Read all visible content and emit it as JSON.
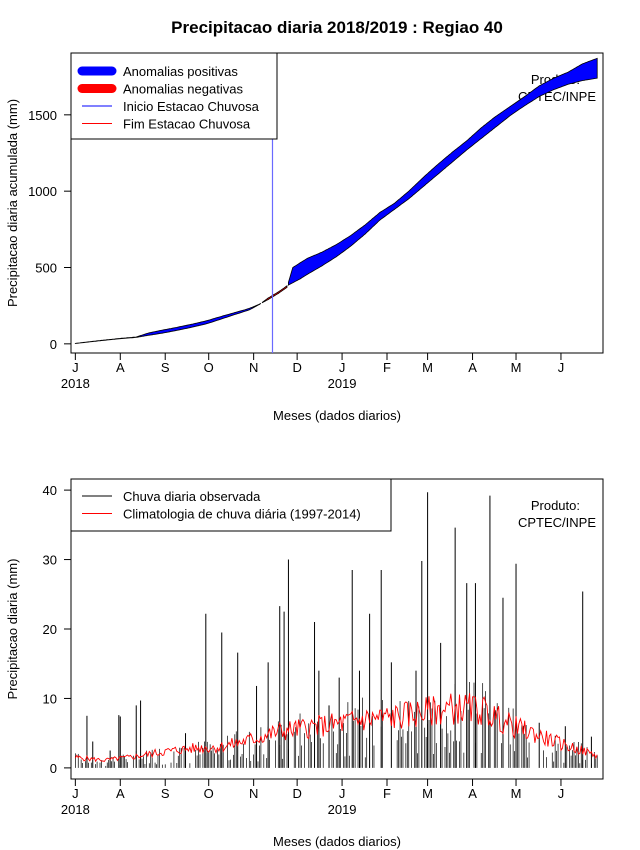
{
  "title": "Precipitacao diaria 2018/2019 : Regiao 40",
  "chart_data": [
    {
      "type": "area",
      "ylabel": "Precipitacao diaria acumulada (mm)",
      "xlabel": "Meses (dados diarios)",
      "x_range_days": [
        -3,
        364
      ],
      "ylim": [
        -60,
        1905
      ],
      "y_ticks": [
        0,
        500,
        1000,
        1500
      ],
      "month_ticks": [
        {
          "label": "J",
          "day": 0
        },
        {
          "label": "A",
          "day": 31
        },
        {
          "label": "S",
          "day": 62
        },
        {
          "label": "O",
          "day": 92
        },
        {
          "label": "N",
          "day": 123
        },
        {
          "label": "D",
          "day": 153
        },
        {
          "label": "J",
          "day": 184
        },
        {
          "label": "F",
          "day": 215
        },
        {
          "label": "M",
          "day": 243
        },
        {
          "label": "A",
          "day": 274
        },
        {
          "label": "M",
          "day": 304
        },
        {
          "label": "J",
          "day": 335
        }
      ],
      "year_labels": [
        {
          "label": "2018",
          "day": 0
        },
        {
          "label": "2019",
          "day": 184
        }
      ],
      "legend": {
        "position": "top-left",
        "entries": [
          {
            "label": "Anomalias positivas",
            "color": "#0000ff",
            "style": "thick"
          },
          {
            "label": "Anomalias negativas",
            "color": "#ff0000",
            "style": "thick"
          },
          {
            "label": "Inicio Estacao Chuvosa",
            "color": "#0000ff",
            "style": "thin"
          },
          {
            "label": "Fim Estacao Chuvosa",
            "color": "#ff0000",
            "style": "thin"
          }
        ]
      },
      "annotation": [
        "Produto:",
        "CPTEC/INPE"
      ],
      "rainy_season_start_day": 136,
      "series": [
        {
          "name": "Observado acumulado",
          "days": [
            0,
            15,
            30,
            42,
            50,
            60,
            70,
            80,
            90,
            100,
            110,
            120,
            127,
            133,
            140,
            146,
            150,
            155,
            160,
            170,
            180,
            190,
            200,
            210,
            220,
            230,
            240,
            250,
            260,
            270,
            280,
            290,
            300,
            310,
            320,
            330,
            340,
            350,
            360
          ],
          "values": [
            3,
            20,
            35,
            45,
            70,
            90,
            108,
            128,
            150,
            178,
            205,
            232,
            260,
            290,
            330,
            370,
            500,
            530,
            560,
            600,
            650,
            710,
            780,
            860,
            920,
            1000,
            1090,
            1175,
            1255,
            1330,
            1415,
            1490,
            1555,
            1620,
            1690,
            1740,
            1780,
            1835,
            1870
          ]
        },
        {
          "name": "Climatologia acumulada",
          "days": [
            0,
            15,
            30,
            42,
            50,
            60,
            70,
            80,
            90,
            100,
            110,
            120,
            127,
            133,
            140,
            146,
            150,
            155,
            160,
            170,
            180,
            190,
            200,
            210,
            220,
            230,
            240,
            250,
            260,
            270,
            280,
            290,
            300,
            310,
            320,
            330,
            340,
            350,
            360
          ],
          "values": [
            2,
            18,
            33,
            42,
            55,
            70,
            88,
            108,
            130,
            160,
            192,
            222,
            258,
            300,
            340,
            380,
            400,
            425,
            455,
            510,
            570,
            640,
            720,
            810,
            880,
            950,
            1030,
            1110,
            1190,
            1270,
            1345,
            1420,
            1495,
            1560,
            1620,
            1665,
            1700,
            1725,
            1740
          ]
        }
      ]
    },
    {
      "type": "bar",
      "ylabel": "Precipitacao diaria (mm)",
      "xlabel": "Meses (dados diarios)",
      "x_range_days": [
        -3,
        364
      ],
      "ylim": [
        -1.6,
        41.6
      ],
      "y_ticks": [
        0,
        10,
        20,
        30,
        40
      ],
      "legend": {
        "position": "top-left",
        "entries": [
          {
            "label": "Chuva diaria observada",
            "color": "#000000"
          },
          {
            "label": "Climatologia de chuva diária (1997-2014)",
            "color": "#ff0000"
          }
        ]
      },
      "annotation": [
        "Produto:",
        "CPTEC/INPE"
      ],
      "series": [
        {
          "name": "Chuva diaria observada",
          "peaks": [
            {
              "day": 8,
              "value": 7.5
            },
            {
              "day": 12,
              "value": 3.8
            },
            {
              "day": 24,
              "value": 2.5
            },
            {
              "day": 30,
              "value": 7.6
            },
            {
              "day": 31,
              "value": 7.4
            },
            {
              "day": 42,
              "value": 9
            },
            {
              "day": 45,
              "value": 9.7
            },
            {
              "day": 76,
              "value": 5
            },
            {
              "day": 90,
              "value": 22.2
            },
            {
              "day": 101,
              "value": 19.5
            },
            {
              "day": 112,
              "value": 16.6
            },
            {
              "day": 125,
              "value": 11.8
            },
            {
              "day": 133,
              "value": 15.2
            },
            {
              "day": 141,
              "value": 23.3
            },
            {
              "day": 144,
              "value": 22.5
            },
            {
              "day": 147,
              "value": 30
            },
            {
              "day": 165,
              "value": 21
            },
            {
              "day": 168,
              "value": 14
            },
            {
              "day": 175,
              "value": 9
            },
            {
              "day": 182,
              "value": 13
            },
            {
              "day": 191,
              "value": 28.5
            },
            {
              "day": 196,
              "value": 14
            },
            {
              "day": 203,
              "value": 22.2
            },
            {
              "day": 211,
              "value": 28.5
            },
            {
              "day": 218,
              "value": 15.2
            },
            {
              "day": 235,
              "value": 14
            },
            {
              "day": 239,
              "value": 29.8
            },
            {
              "day": 243,
              "value": 39.7
            },
            {
              "day": 252,
              "value": 18
            },
            {
              "day": 262,
              "value": 34.6
            },
            {
              "day": 270,
              "value": 26.6
            },
            {
              "day": 276,
              "value": 26.6
            },
            {
              "day": 286,
              "value": 39.2
            },
            {
              "day": 295,
              "value": 24.5
            },
            {
              "day": 304,
              "value": 29.4
            },
            {
              "day": 320,
              "value": 6.5
            },
            {
              "day": 338,
              "value": 6
            },
            {
              "day": 350,
              "value": 25.4
            },
            {
              "day": 356,
              "value": 4.5
            }
          ]
        },
        {
          "name": "Climatologia de chuva diária (1997-2014)",
          "days": [
            0,
            20,
            40,
            60,
            80,
            100,
            120,
            140,
            160,
            180,
            200,
            220,
            240,
            260,
            280,
            300,
            320,
            340,
            360
          ],
          "values": [
            1.5,
            1.1,
            1.6,
            2.3,
            2.8,
            3.0,
            4.0,
            5.2,
            5.8,
            6.3,
            7.0,
            7.3,
            8.0,
            8.6,
            8.4,
            6.2,
            4.6,
            3.1,
            1.8
          ]
        }
      ]
    }
  ]
}
